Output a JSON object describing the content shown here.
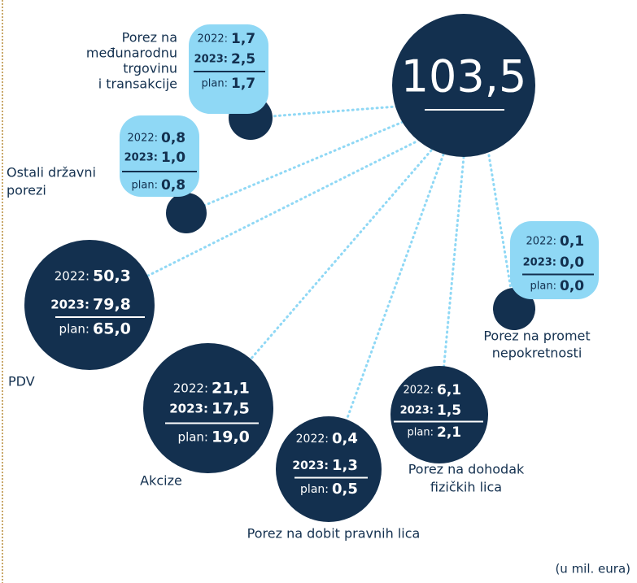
{
  "total": "103,5",
  "labels": {
    "y2022": "2022:",
    "y2023": "2023:",
    "plan": "plan:"
  },
  "items": [
    {
      "label": [
        "Porez na",
        "međunarodnu",
        "trgovinu",
        "i transakcije"
      ],
      "y2022": "1,7",
      "y2023": "2,5",
      "plan": "1,7"
    },
    {
      "label": [
        "Ostali državni",
        "porezi"
      ],
      "y2022": "0,8",
      "y2023": "1,0",
      "plan": "0,8"
    },
    {
      "label": [
        "PDV"
      ],
      "y2022": "50,3",
      "y2023": "79,8",
      "plan": "65,0"
    },
    {
      "label": [
        "Akcize"
      ],
      "y2022": "21,1",
      "y2023": "17,5",
      "plan": "19,0"
    },
    {
      "label": [
        "Porez na dobit pravnih lica"
      ],
      "y2022": "0,4",
      "y2023": "1,3",
      "plan": "0,5"
    },
    {
      "label": [
        "Porez na dohodak",
        "fizičkih lica"
      ],
      "y2022": "6,1",
      "y2023": "1,5",
      "plan": "2,1"
    },
    {
      "label": [
        "Porez na promet",
        "nepokretnosti"
      ],
      "y2022": "0,1",
      "y2023": "0,0",
      "plan": "0,0"
    }
  ],
  "note": "(u mil. eura)"
}
